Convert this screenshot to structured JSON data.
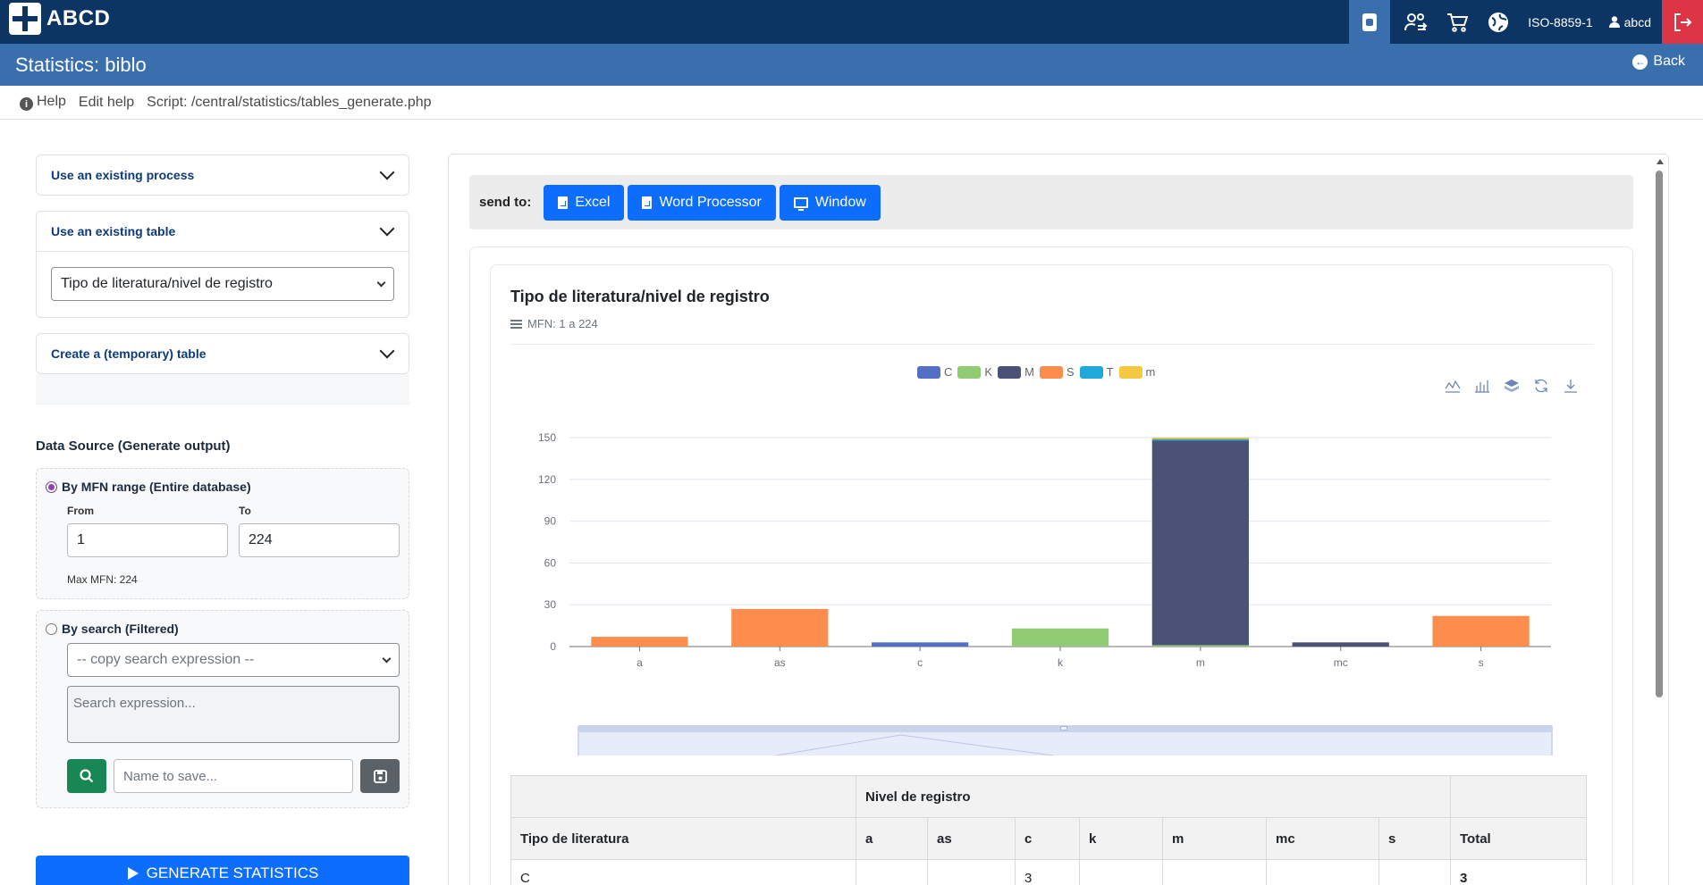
{
  "topbar": {
    "logo_text": "ABCD",
    "logo_sub": "· · · · · · · · · ·",
    "encoding": "ISO-8859-1",
    "user": "abcd",
    "icons": [
      "database-icon",
      "users-swap-icon",
      "cart-icon",
      "globe-icon",
      "user-icon",
      "logout-icon"
    ]
  },
  "titlebar": {
    "title": "Statistics: biblo",
    "back_label": "Back"
  },
  "helpbar": {
    "help": "Help",
    "edit_help": "Edit help",
    "script": "Script: /central/statistics/tables_generate.php"
  },
  "sidebar": {
    "existing_process": "Use an existing process",
    "existing_table": "Use an existing table",
    "table_selected": "Tipo de literatura/nivel de registro",
    "create_table": "Create a (temporary) table",
    "data_source_title": "Data Source (Generate output)",
    "mfn_range_label": "By MFN range (Entire database)",
    "from_label": "From",
    "to_label": "To",
    "from_value": "1",
    "to_value": "224",
    "max_mfn": "Max MFN: 224",
    "by_search_label": "By search (Filtered)",
    "copy_search": "-- copy search expression --",
    "search_placeholder": "Search expression...",
    "name_placeholder": "Name to save...",
    "generate_label": "GENERATE STATISTICS"
  },
  "sendbar": {
    "label": "send to:",
    "excel": "Excel",
    "word": "Word Processor",
    "window": "Window"
  },
  "chart_header": {
    "title": "Tipo de literatura/nivel de registro",
    "subtitle": "MFN: 1 a 224"
  },
  "colors": {
    "C": "#5470c6",
    "K": "#91cc75",
    "M": "#4b5275",
    "S": "#fc8d4c",
    "T": "#1fa8d9",
    "m": "#f5c842"
  },
  "chart_data": {
    "type": "bar",
    "stacked": true,
    "categories": [
      "a",
      "as",
      "c",
      "k",
      "m",
      "mc",
      "s"
    ],
    "series": [
      {
        "name": "C",
        "values": [
          0,
          0,
          3,
          0,
          0,
          0,
          0
        ]
      },
      {
        "name": "K",
        "values": [
          0,
          0,
          0,
          13,
          1,
          0,
          0
        ]
      },
      {
        "name": "M",
        "values": [
          0,
          0,
          0,
          0,
          147,
          3,
          0
        ]
      },
      {
        "name": "S",
        "values": [
          7,
          27,
          0,
          0,
          0,
          0,
          22
        ]
      },
      {
        "name": "T",
        "values": [
          0,
          0,
          0,
          0,
          1,
          0,
          0
        ]
      },
      {
        "name": "m",
        "values": [
          0,
          0,
          0,
          0,
          1,
          0,
          0
        ]
      }
    ],
    "yticks": [
      0,
      30,
      60,
      90,
      120,
      150
    ],
    "ylim": [
      0,
      150
    ],
    "legend": "top",
    "grid": true
  },
  "table": {
    "col_group": "Nivel de registro",
    "row_header": "Tipo de literatura",
    "columns": [
      "a",
      "as",
      "c",
      "k",
      "m",
      "mc",
      "s"
    ],
    "total_label": "Total",
    "rows": [
      {
        "label": "C",
        "cells": [
          "",
          "",
          "3",
          "",
          "",
          "",
          ""
        ],
        "total": "3"
      }
    ]
  }
}
